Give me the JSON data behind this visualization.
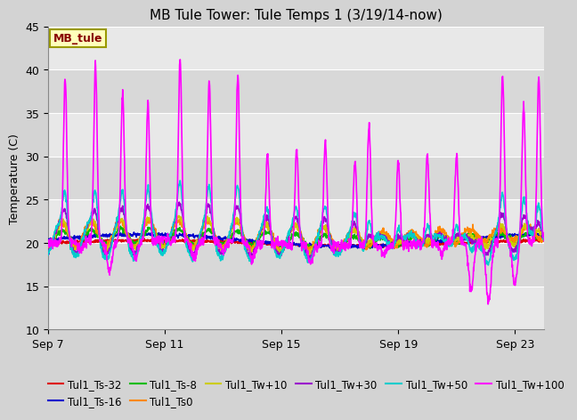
{
  "title": "MB Tule Tower: Tule Temps 1 (3/19/14-now)",
  "ylabel": "Temperature (C)",
  "ylim": [
    10,
    45
  ],
  "yticks": [
    10,
    15,
    20,
    25,
    30,
    35,
    40,
    45
  ],
  "x_tick_labels": [
    "Sep 7",
    "Sep 11",
    "Sep 15",
    "Sep 19",
    "Sep 23"
  ],
  "x_tick_positions": [
    0,
    4,
    8,
    12,
    16
  ],
  "xlim": [
    0,
    17
  ],
  "fig_bg": "#d3d3d3",
  "plot_bg": "#e8e8e8",
  "band_colors": [
    "#e8e8e8",
    "#d8d8d8"
  ],
  "annotation_label": "MB_tule",
  "annotation_color": "#880000",
  "annotation_bg": "#ffffbb",
  "annotation_border": "#999900",
  "series": [
    {
      "label": "Tul1_Ts-32",
      "color": "#dd0000",
      "lw": 1.2,
      "depth": -32
    },
    {
      "label": "Tul1_Ts-16",
      "color": "#0000cc",
      "lw": 1.2,
      "depth": -16
    },
    {
      "label": "Tul1_Ts-8",
      "color": "#00bb00",
      "lw": 1.2,
      "depth": -8
    },
    {
      "label": "Tul1_Ts0",
      "color": "#ff8800",
      "lw": 1.2,
      "depth": 0
    },
    {
      "label": "Tul1_Tw+10",
      "color": "#cccc00",
      "lw": 1.2,
      "depth": 10
    },
    {
      "label": "Tul1_Tw+30",
      "color": "#9900cc",
      "lw": 1.2,
      "depth": 30
    },
    {
      "label": "Tul1_Tw+50",
      "color": "#00cccc",
      "lw": 1.2,
      "depth": 50
    },
    {
      "label": "Tul1_Tw+100",
      "color": "#ff00ff",
      "lw": 1.2,
      "depth": 100
    }
  ],
  "title_fontsize": 11,
  "legend_fontsize": 8.5,
  "tick_fontsize": 9
}
